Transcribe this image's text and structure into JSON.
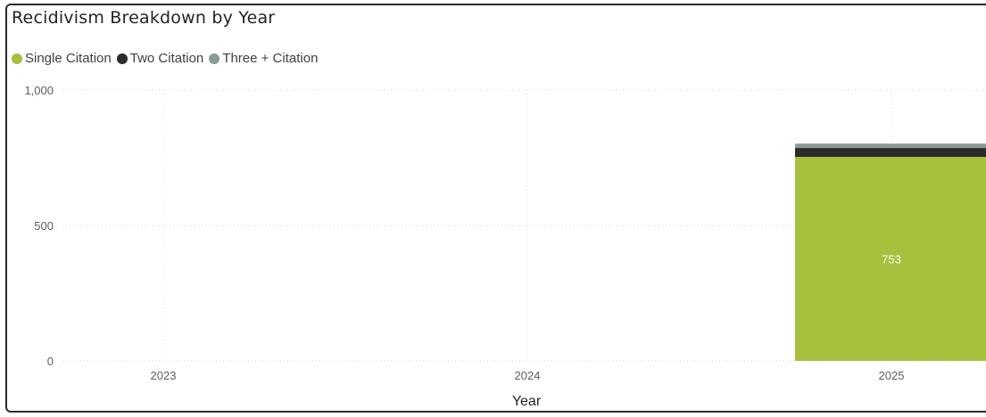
{
  "chart_data": {
    "type": "bar",
    "stacked": true,
    "title": "Recidivism Breakdown by Year",
    "xlabel": "Year",
    "ylabel": "",
    "categories": [
      "2023",
      "2024",
      "2025"
    ],
    "ylim": [
      0,
      1000
    ],
    "yticks": [
      "0",
      "500",
      "1,000"
    ],
    "series": [
      {
        "name": "Single Citation",
        "color": "#a7c03d",
        "values": [
          0,
          0,
          753
        ],
        "labels": [
          "",
          "",
          "753"
        ]
      },
      {
        "name": "Two Citation",
        "color": "#2b2b2b",
        "values": [
          0,
          0,
          33
        ],
        "labels": [
          "",
          "",
          ""
        ]
      },
      {
        "name": "Three + Citation",
        "color": "#8a9a96",
        "values": [
          0,
          0,
          16
        ],
        "labels": [
          "",
          "",
          ""
        ]
      }
    ],
    "grid": true,
    "legend_position": "top-left"
  }
}
